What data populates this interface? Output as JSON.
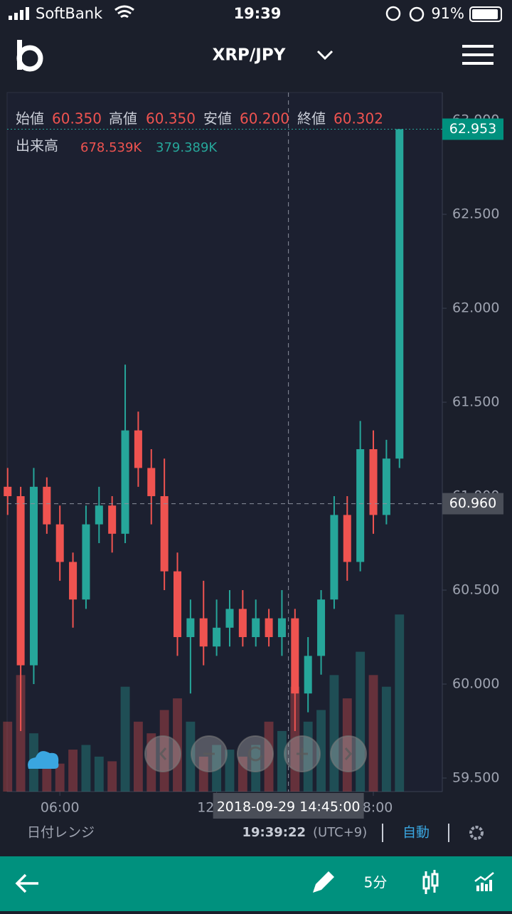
{
  "status_bar": {
    "carrier": "SoftBank",
    "time": "19:39",
    "battery": "91%"
  },
  "header": {
    "pair": "XRP/JPY"
  },
  "chart_data": {
    "type": "candlestick",
    "legend": {
      "open_label": "始値",
      "open": {
        "value": 60.35,
        "label": "60.350"
      },
      "high_label": "高値",
      "high": {
        "value": 60.35,
        "label": "60.350"
      },
      "low_label": "安値",
      "low": {
        "value": 60.2,
        "label": "60.200"
      },
      "close_label": "終値",
      "close": {
        "value": 60.302,
        "label": "60.302"
      },
      "volume_label": "出来高",
      "buy_volume": {
        "value": 678539,
        "label": "678.539K"
      },
      "sell_volume": {
        "value": 379389,
        "label": "379.389K"
      }
    },
    "x": [
      4.0,
      4.5,
      5.0,
      5.5,
      6.0,
      6.5,
      7.0,
      7.5,
      8.0,
      8.5,
      9.0,
      9.5,
      10.0,
      10.5,
      11.0,
      11.5,
      12.0,
      12.5,
      13.0,
      13.5,
      14.0,
      14.5,
      15.0,
      15.5,
      16.0,
      16.5,
      17.0,
      17.5,
      18.0,
      18.5,
      19.0
    ],
    "open": [
      61.05,
      61.0,
      60.1,
      61.05,
      60.85,
      60.65,
      60.45,
      60.85,
      60.95,
      60.8,
      61.35,
      61.15,
      61.0,
      60.6,
      60.25,
      60.35,
      60.2,
      60.3,
      60.4,
      60.25,
      60.35,
      60.25,
      60.35,
      59.95,
      60.15,
      60.45,
      60.9,
      60.65,
      61.25,
      60.9,
      61.2
    ],
    "high": [
      61.15,
      61.05,
      61.15,
      61.1,
      60.95,
      60.7,
      60.95,
      61.05,
      61.0,
      61.7,
      61.45,
      61.25,
      61.2,
      60.7,
      60.45,
      60.55,
      60.45,
      60.5,
      60.5,
      60.45,
      60.4,
      60.5,
      60.4,
      60.25,
      60.5,
      61.0,
      61.0,
      61.4,
      61.35,
      61.3,
      62.953
    ],
    "low": [
      60.9,
      59.75,
      60.0,
      60.8,
      60.55,
      60.3,
      60.4,
      60.75,
      60.7,
      60.75,
      61.05,
      60.85,
      60.5,
      60.15,
      59.95,
      60.1,
      60.15,
      60.2,
      60.2,
      60.2,
      60.2,
      60.15,
      59.75,
      59.85,
      60.05,
      60.4,
      60.55,
      60.6,
      60.8,
      60.85,
      61.15
    ],
    "close": [
      61.0,
      60.1,
      61.05,
      60.85,
      60.65,
      60.45,
      60.85,
      60.95,
      60.8,
      61.35,
      61.15,
      61.0,
      60.6,
      60.25,
      60.35,
      60.2,
      60.3,
      60.4,
      60.25,
      60.35,
      60.25,
      60.35,
      59.95,
      60.15,
      60.45,
      60.9,
      60.65,
      61.25,
      60.9,
      61.2,
      62.953
    ],
    "volume": [
      300,
      500,
      250,
      150,
      120,
      180,
      200,
      150,
      130,
      450,
      300,
      250,
      350,
      400,
      300,
      150,
      200,
      180,
      150,
      200,
      300,
      260,
      450,
      300,
      350,
      500,
      400,
      600,
      500,
      450,
      760
    ],
    "up_color": "#26a69a",
    "down_color": "#ef5350",
    "xlim": [
      3.98,
      20.64
    ],
    "xticks": [
      {
        "value": 6,
        "label": "06:00"
      },
      {
        "value": 12,
        "label": "12:00"
      },
      {
        "value": 18,
        "label": "18:00"
      }
    ],
    "ylim": [
      59.428,
      63.148
    ],
    "yticks": [
      {
        "value": 59.5,
        "label": "59.500"
      },
      {
        "value": 60,
        "label": "60.000"
      },
      {
        "value": 60.5,
        "label": "60.500"
      },
      {
        "value": 61,
        "label": "61.000"
      },
      {
        "value": 61.5,
        "label": "61.500"
      },
      {
        "value": 62,
        "label": "62.000"
      },
      {
        "value": 62.5,
        "label": "62.500"
      },
      {
        "value": 63,
        "label": "63.000"
      }
    ],
    "y2lim": [
      0,
      3000
    ],
    "last_price": {
      "value": 62.953,
      "label": "62.953"
    },
    "crosshair_price": {
      "value": 60.96,
      "label": "60.960"
    },
    "crosshair_time": {
      "value": 14.75,
      "label": "2018-09-29 14:45:00"
    }
  },
  "footer": {
    "date_range": "日付レンジ",
    "clock": "19:39:22",
    "timezone": "(UTC+9)",
    "auto": "自動"
  },
  "toolbar": {
    "interval": "5分"
  }
}
